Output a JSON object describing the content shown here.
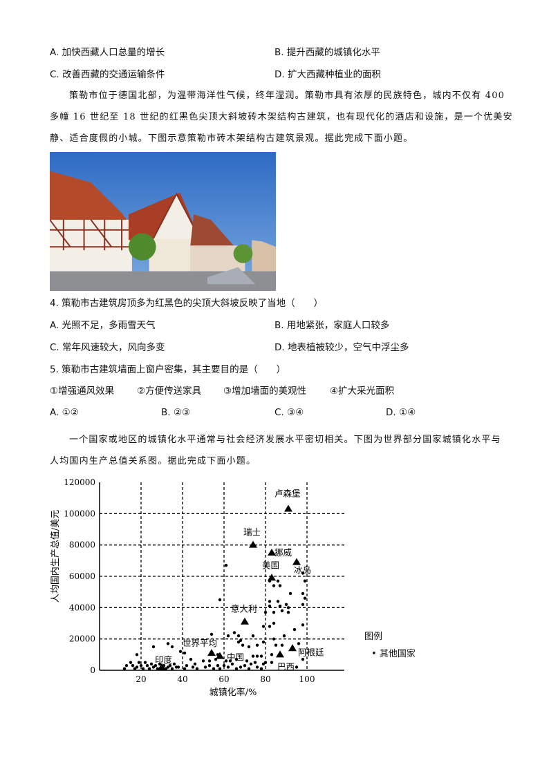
{
  "prev_question": {
    "options": [
      "A. 加快西藏人口总量的增长",
      "B. 提升西藏的城镇化水平",
      "C. 改善西藏的交通运输条件",
      "D. 扩大西藏种植业的面积"
    ]
  },
  "passage1": {
    "lines": [
      "策勒市位于德国北部，为温带海洋性气候，终年湿润。策勒市具有浓厚的民族特色，城内不仅有 400",
      "多幢 16 世纪至 18 世纪的红黑色尖顶大斜坡砖木架结构古建筑，也有现代化的酒店和设施，是一个优美安",
      "静、适合度假的小城。下图示意策勒市砖木架结构古建筑景观。据此完成下面小题。"
    ]
  },
  "q4": {
    "stem": "4. 策勒市古建筑房顶多为红黑色的尖顶大斜坡反映了当地（　　）",
    "options": [
      "A. 光照不足，多雨雪天气",
      "B. 用地紧张，家庭人口较多",
      "C. 常年风速较大，风向多变",
      "D. 地表植被较少，空气中浮尘多"
    ]
  },
  "q5": {
    "stem": "5. 策勒市古建筑墙面上窗户密集，其主要目的是（　　）",
    "items": [
      "①增强通风效果",
      "②方便传送家具",
      "③增加墙面的美观性",
      "④扩大采光面积"
    ],
    "options": [
      "A. ①②",
      "B. ②③",
      "C. ③④",
      "D. ①④"
    ]
  },
  "passage2": {
    "lines": [
      "一个国家或地区的城镇化水平通常与社会经济发展水平密切相关。下图为世界部分国家城镇化水平与",
      "人均国内生产总值关系图。据此完成下面小题。"
    ]
  },
  "chart_data": {
    "type": "scatter",
    "xlabel": "城镇化率/%",
    "ylabel": "人均国内生产总值/美元",
    "xlim": [
      0,
      118
    ],
    "ylim": [
      0,
      120000
    ],
    "xticks": [
      20,
      40,
      60,
      80,
      100
    ],
    "yticks": [
      0,
      20000,
      40000,
      60000,
      80000,
      100000,
      120000
    ],
    "grid": "dashed",
    "legend": {
      "title": "图例",
      "entries": [
        "其他国家"
      ],
      "placement": "right"
    },
    "labeled_points": [
      {
        "name": "卢森堡",
        "x": 91,
        "y": 103000
      },
      {
        "name": "瑞士",
        "x": 74,
        "y": 80000
      },
      {
        "name": "挪威",
        "x": 83,
        "y": 75000
      },
      {
        "name": "冰岛",
        "x": 95,
        "y": 69000
      },
      {
        "name": "美国",
        "x": 83,
        "y": 59000
      },
      {
        "name": "意大利",
        "x": 70,
        "y": 31000
      },
      {
        "name": "世界平均",
        "x": 54,
        "y": 11000
      },
      {
        "name": "中国",
        "x": 58,
        "y": 9000
      },
      {
        "name": "印度",
        "x": 30,
        "y": 2000
      },
      {
        "name": "巴西",
        "x": 87,
        "y": 10000
      },
      {
        "name": "阿根廷",
        "x": 93,
        "y": 14000
      }
    ],
    "other_countries": [
      [
        61,
        67000
      ],
      [
        58,
        45000
      ],
      [
        98,
        62000
      ],
      [
        99,
        57000
      ],
      [
        82,
        57000
      ],
      [
        84,
        54000
      ],
      [
        86,
        57000
      ],
      [
        87,
        54000
      ],
      [
        92,
        49000
      ],
      [
        98,
        49000
      ],
      [
        99,
        46000
      ],
      [
        82,
        44000
      ],
      [
        86,
        44000
      ],
      [
        82,
        41000
      ],
      [
        87,
        41000
      ],
      [
        90,
        42000
      ],
      [
        91,
        40000
      ],
      [
        98,
        42000
      ],
      [
        80,
        37000
      ],
      [
        84,
        37000
      ],
      [
        88,
        38000
      ],
      [
        91,
        37000
      ],
      [
        79,
        28000
      ],
      [
        82,
        28000
      ],
      [
        84,
        30000
      ],
      [
        98,
        29000
      ],
      [
        94,
        26000
      ],
      [
        54,
        23000
      ],
      [
        62,
        22000
      ],
      [
        65,
        24000
      ],
      [
        67,
        22000
      ],
      [
        74,
        22000
      ],
      [
        84,
        20000
      ],
      [
        89,
        22000
      ],
      [
        79,
        18000
      ],
      [
        68,
        19000
      ],
      [
        67,
        18000
      ],
      [
        69,
        16000
      ],
      [
        72,
        15000
      ],
      [
        76,
        16000
      ],
      [
        85,
        16000
      ],
      [
        88,
        16000
      ],
      [
        96,
        17000
      ],
      [
        26,
        15000
      ],
      [
        33,
        17000
      ],
      [
        35,
        15000
      ],
      [
        39,
        12000
      ],
      [
        41,
        11000
      ],
      [
        18,
        10000
      ],
      [
        44,
        7000
      ],
      [
        50,
        6000
      ],
      [
        53,
        6000
      ],
      [
        56,
        7000
      ],
      [
        57,
        10000
      ],
      [
        61,
        6000
      ],
      [
        63,
        6000
      ],
      [
        66,
        7000
      ],
      [
        71,
        6000
      ],
      [
        74,
        9000
      ],
      [
        76,
        9000
      ],
      [
        78,
        9000
      ],
      [
        75,
        5000
      ],
      [
        80,
        5000
      ],
      [
        83,
        10000
      ],
      [
        83,
        5000
      ],
      [
        98,
        7000
      ],
      [
        95,
        2000
      ],
      [
        12,
        1000
      ],
      [
        13,
        3000
      ],
      [
        15,
        5000
      ],
      [
        16,
        3000
      ],
      [
        17,
        1000
      ],
      [
        18,
        2000
      ],
      [
        19,
        5000
      ],
      [
        20,
        3000
      ],
      [
        21,
        1000
      ],
      [
        22,
        5000
      ],
      [
        23,
        3000
      ],
      [
        24,
        1000
      ],
      [
        25,
        4000
      ],
      [
        26,
        2000
      ],
      [
        27,
        3000
      ],
      [
        28,
        1000
      ],
      [
        29,
        4000
      ],
      [
        31,
        3000
      ],
      [
        32,
        1000
      ],
      [
        33,
        2000
      ],
      [
        34,
        3000
      ],
      [
        35,
        1000
      ],
      [
        36,
        4000
      ],
      [
        37,
        2000
      ],
      [
        38,
        2000
      ],
      [
        41,
        1000
      ],
      [
        42,
        3000
      ],
      [
        45,
        2000
      ],
      [
        46,
        4000
      ],
      [
        47,
        1000
      ],
      [
        51,
        2000
      ],
      [
        53,
        3000
      ],
      [
        55,
        1000
      ],
      [
        57,
        3000
      ],
      [
        58,
        1000
      ],
      [
        60,
        3000
      ],
      [
        62,
        2000
      ],
      [
        64,
        4000
      ],
      [
        66,
        1000
      ],
      [
        68,
        2000
      ],
      [
        70,
        3000
      ],
      [
        72,
        1000
      ],
      [
        73,
        4000
      ],
      [
        76,
        2000
      ],
      [
        78,
        1000
      ],
      [
        79,
        4000
      ]
    ]
  }
}
